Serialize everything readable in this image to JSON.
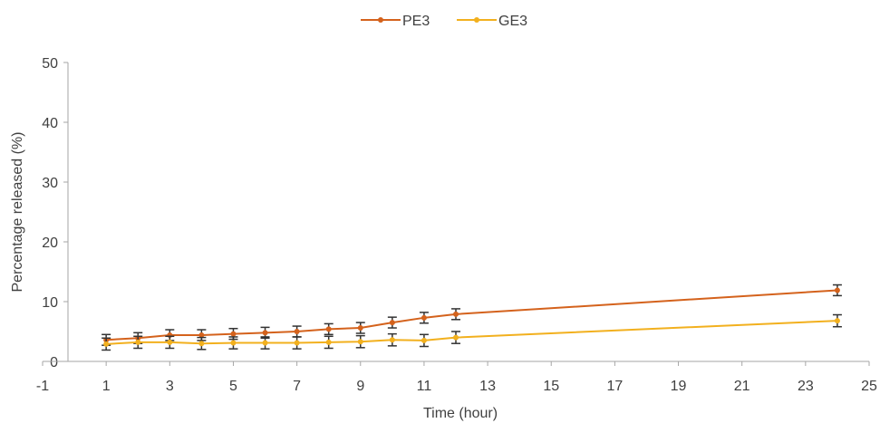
{
  "chart_data": {
    "type": "line",
    "title": "",
    "xlabel": "Time (hour)",
    "ylabel": "Percentage released (%)",
    "xlim": [
      -1,
      25
    ],
    "ylim": [
      0,
      50
    ],
    "x_ticks": [
      "-1",
      "1",
      "3",
      "5",
      "7",
      "9",
      "11",
      "13",
      "15",
      "17",
      "19",
      "21",
      "23",
      "25"
    ],
    "y_ticks": [
      "0",
      "10",
      "20",
      "30",
      "40",
      "50"
    ],
    "grid": false,
    "legend_position": "top-center",
    "series": [
      {
        "name": "PE3",
        "color": "#D4621C",
        "x": [
          1,
          2,
          3,
          4,
          5,
          6,
          7,
          8,
          9,
          10,
          11,
          12,
          24
        ],
        "y": [
          3.6,
          3.9,
          4.4,
          4.4,
          4.6,
          4.8,
          5.0,
          5.4,
          5.6,
          6.5,
          7.3,
          7.9,
          11.9
        ],
        "error": [
          0.9,
          0.9,
          0.9,
          0.9,
          0.9,
          0.9,
          0.9,
          0.9,
          0.9,
          0.9,
          0.9,
          0.9,
          0.9
        ]
      },
      {
        "name": "GE3",
        "color": "#F2B01E",
        "x": [
          1,
          2,
          3,
          4,
          5,
          6,
          7,
          8,
          9,
          10,
          11,
          12,
          24
        ],
        "y": [
          2.9,
          3.2,
          3.2,
          3.0,
          3.1,
          3.1,
          3.1,
          3.2,
          3.3,
          3.6,
          3.5,
          4.0,
          6.8
        ],
        "error": [
          1.0,
          1.0,
          1.0,
          1.0,
          1.0,
          1.0,
          1.0,
          1.0,
          1.0,
          1.0,
          1.0,
          1.0,
          1.0
        ]
      }
    ]
  }
}
